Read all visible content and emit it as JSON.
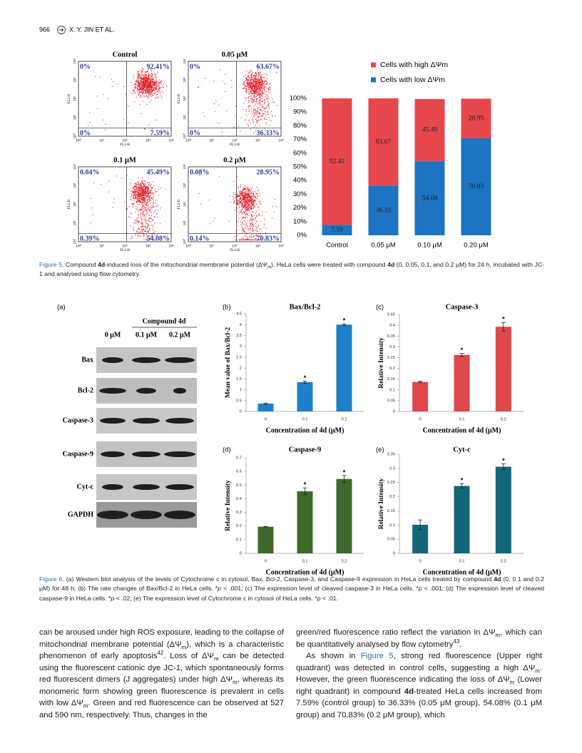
{
  "header": {
    "page_number": "966",
    "running_head": "X. Y. JIN ET AL."
  },
  "figure5": {
    "flow_panels": [
      {
        "title": "Control",
        "upper_left": "0%",
        "upper_right": "92.41%",
        "lower_left": "0%",
        "lower_right": "7.59%"
      },
      {
        "title": "0.05 μM",
        "upper_left": "0%",
        "upper_right": "63.67%",
        "lower_left": "0%",
        "lower_right": "36.33%"
      },
      {
        "title": "0.1 μM",
        "upper_left": "0.04%",
        "upper_right": "45.49%",
        "lower_left": "0.39%",
        "lower_right": "54.08%"
      },
      {
        "title": "0.2 μM",
        "upper_left": "0.08%",
        "upper_right": "28.95%",
        "lower_left": "0.14%",
        "lower_right": "70.83%"
      }
    ],
    "flow_axis": {
      "x_label": "FL1-H",
      "y_label": "FL2-H",
      "tick_labels": [
        "10⁰",
        "10¹",
        "10²",
        "10³",
        "10⁴"
      ]
    },
    "chart_data": {
      "type": "stacked_bar",
      "categories": [
        "Control",
        "0.05 μM",
        "0.10 μM",
        "0.20 μM"
      ],
      "series": [
        {
          "name": "Cells with high ΔΨm",
          "color": "#e6474d",
          "values": [
            92.41,
            63.67,
            45.49,
            28.95
          ]
        },
        {
          "name": "Cells with low ΔΨm",
          "color": "#1c74c2",
          "values": [
            7.59,
            36.33,
            54.08,
            70.83
          ]
        }
      ],
      "ylim": [
        0,
        100
      ],
      "yticks": [
        {
          "value": 0,
          "label": "0%"
        },
        {
          "value": 10,
          "label": "10%"
        },
        {
          "value": 20,
          "label": "20%"
        },
        {
          "value": 30,
          "label": "30%"
        },
        {
          "value": 40,
          "label": "40%"
        },
        {
          "value": 50,
          "label": "50%"
        },
        {
          "value": 60,
          "label": "60%"
        },
        {
          "value": 70,
          "label": "70%"
        },
        {
          "value": 80,
          "label": "80%"
        },
        {
          "value": 90,
          "label": "90%"
        },
        {
          "value": 100,
          "label": "100%"
        }
      ],
      "legend": "top"
    },
    "caption": [
      {
        "text": "Figure 5",
        "style": "label"
      },
      ". Compound ",
      {
        "text": "4d",
        "style": "bold"
      },
      "-induced loss of the mitochondrial membrane potential (ΔΨ",
      {
        "text": "m",
        "style": "sub"
      },
      "). HeLa cells were treated with compound ",
      {
        "text": "4d",
        "style": "bold"
      },
      " (0, 0.05, 0.1, and 0.2 μM) for 24 h, incubated with JC-1 and analysed using flow cytometry."
    ]
  },
  "figure6": {
    "blot": {
      "panel": "(a)",
      "group_label": "Compound 4d",
      "columns": [
        "0 μM",
        "0.1 μM",
        "0.2 μM"
      ],
      "rows": [
        "Bax",
        "Bcl-2",
        "Caspase-3",
        "Caspase-9",
        "Cyt-c",
        "GAPDH"
      ]
    },
    "charts": [
      {
        "type": "bar",
        "panel": "(b)",
        "title": "Bax/Bcl-2",
        "ylabel": "Mean value of Bax/Bcl-2",
        "xlabel": "Concentration of 4d (μM)",
        "categories": [
          "0",
          "0.1",
          "0.2"
        ],
        "values": [
          0.36,
          1.35,
          4.0
        ],
        "errors": [
          0.03,
          0.05,
          0.04
        ],
        "significance": [
          null,
          "*",
          "*"
        ],
        "color": "#1f80c9",
        "ylim": [
          0,
          4.5
        ],
        "yticks": [
          0,
          0.5,
          1,
          1.5,
          2,
          2.5,
          3,
          3.5,
          4,
          4.5
        ]
      },
      {
        "type": "bar",
        "panel": "(c)",
        "title": "Caspase-3",
        "ylabel": "Relative Intensity",
        "xlabel": "Concentration of 4d (μM)",
        "categories": [
          "0",
          "0.1",
          "0.2"
        ],
        "values": [
          0.137,
          0.262,
          0.393
        ],
        "errors": [
          0.003,
          0.007,
          0.02
        ],
        "significance": [
          null,
          "*",
          "*"
        ],
        "color": "#e1484e",
        "ylim": [
          0,
          0.45
        ],
        "yticks": [
          0,
          0.05,
          0.1,
          0.15,
          0.2,
          0.25,
          0.3,
          0.35,
          0.4,
          0.45
        ]
      },
      {
        "type": "bar",
        "panel": "(d)",
        "title": "Caspase-9",
        "ylabel": "Relative Intensity",
        "xlabel": "Concentration of 4d (μM)",
        "categories": [
          "0",
          "0.1",
          "0.2"
        ],
        "values": [
          0.195,
          0.455,
          0.545
        ],
        "errors": [
          0.003,
          0.025,
          0.025
        ],
        "significance": [
          null,
          "*",
          "*"
        ],
        "color": "#3d6a2c",
        "ylim": [
          0,
          0.7
        ],
        "yticks": [
          0,
          0.1,
          0.2,
          0.3,
          0.4,
          0.5,
          0.6,
          0.7
        ]
      },
      {
        "type": "bar",
        "panel": "(e)",
        "title": "Cyt-c",
        "ylabel": "Relative Intensity",
        "xlabel": "Concentration of 4d (μM)",
        "categories": [
          "0",
          "0.1",
          "0.2"
        ],
        "values": [
          0.101,
          0.238,
          0.306
        ],
        "errors": [
          0.017,
          0.008,
          0.01
        ],
        "significance": [
          null,
          "*",
          "*"
        ],
        "color": "#146779",
        "ylim": [
          0,
          0.35
        ],
        "yticks": [
          0,
          0.05,
          0.1,
          0.15,
          0.2,
          0.25,
          0.3,
          0.35
        ]
      }
    ],
    "caption": [
      {
        "text": "Figure 6",
        "style": "label"
      },
      ". (a) Western blot analysis of the levels of Cytochrome c in cytosol, Bax, Bcl-2, Caspase-3, and Caspase-9 expression in HeLa cells treated by compound ",
      {
        "text": "4d",
        "style": "bold"
      },
      " (0, 0.1 and 0.2 μM) for 48 h; (b) The rate changes of Bax/Bcl-2 in HeLa cells. *",
      {
        "text": "p",
        "style": "italic"
      },
      " < .001; (c) The expression level of cleaved caspase-3 in HeLa cells. *",
      {
        "text": "p",
        "style": "italic"
      },
      " < .001; (d) The expression level of cleaved caspase-9 in HeLa cells. *",
      {
        "text": "p",
        "style": "italic"
      },
      " < .02; (e) The expression level of Cytochrome c in cytosol of HeLa cells. *",
      {
        "text": "p",
        "style": "italic"
      },
      " < .01."
    ]
  },
  "body": {
    "left_column": [
      [
        "can be aroused under high ROS exposure, leading to the collapse of mitochondrial membrane potential (ΔΨ",
        {
          "text": "m",
          "style": "sub"
        },
        "), which is a characteristic phenomenon of early apoptosis",
        {
          "text": "42",
          "style": "sup"
        },
        ". Loss of ΔΨ",
        {
          "text": "m",
          "style": "sub"
        },
        " can be detected using the fluorescent cationic dye JC-1, which spontaneously forms red fluorescent dimers (J aggregates) under high ΔΨ",
        {
          "text": "m",
          "style": "sub"
        },
        ", whereas its monomeric form showing green fluorescence is prevalent in cells with low ΔΨ",
        {
          "text": "m",
          "style": "sub"
        },
        ". Green and red fluorescence can be observed at 527 and 590 nm, respectively. Thus, changes in the"
      ]
    ],
    "right_column": [
      [
        "green/red fluorescence ratio reflect the variation in ΔΨ",
        {
          "text": "m",
          "style": "sub"
        },
        ", which can be quantitatively analysed by flow cytometry",
        {
          "text": "43",
          "style": "sup"
        },
        "."
      ],
      [
        "As shown in ",
        {
          "text": "Figure 5",
          "style": "link"
        },
        ", strong red fluorescence (Upper right quadrant) was detected in control cells, suggesting a high ΔΨ",
        {
          "text": "m",
          "style": "sub"
        },
        ". However, the green fluorescence indicating the loss of ΔΨ",
        {
          "text": "m",
          "style": "sub"
        },
        " (Lower right quadrant) in compound ",
        {
          "text": "4d",
          "style": "bold"
        },
        "-treated HeLa cells increased from 7.59% (control group) to 36.33% (0.05 μM group), 54.08% (0.1 μM group) and 70.83% (0.2 μM group), which"
      ]
    ]
  }
}
